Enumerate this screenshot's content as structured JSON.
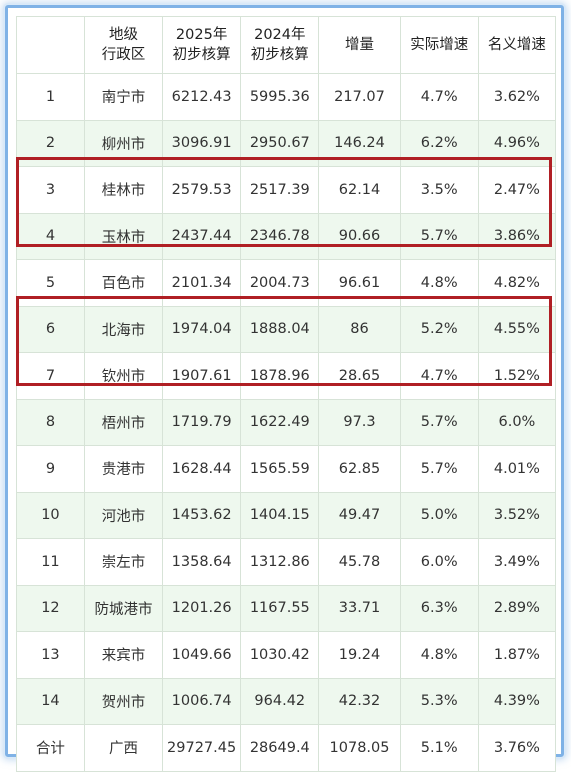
{
  "table": {
    "headers": [
      "",
      "地级\n行政区",
      "2025年\n初步核算",
      "2024年\n初步核算",
      "增量",
      "实际增速",
      "名义增速"
    ],
    "rows": [
      [
        "1",
        "南宁市",
        "6212.43",
        "5995.36",
        "217.07",
        "4.7%",
        "3.62%"
      ],
      [
        "2",
        "柳州市",
        "3096.91",
        "2950.67",
        "146.24",
        "6.2%",
        "4.96%"
      ],
      [
        "3",
        "桂林市",
        "2579.53",
        "2517.39",
        "62.14",
        "3.5%",
        "2.47%"
      ],
      [
        "4",
        "玉林市",
        "2437.44",
        "2346.78",
        "90.66",
        "5.7%",
        "3.86%"
      ],
      [
        "5",
        "百色市",
        "2101.34",
        "2004.73",
        "96.61",
        "4.8%",
        "4.82%"
      ],
      [
        "6",
        "北海市",
        "1974.04",
        "1888.04",
        "86",
        "5.2%",
        "4.55%"
      ],
      [
        "7",
        "钦州市",
        "1907.61",
        "1878.96",
        "28.65",
        "4.7%",
        "1.52%"
      ],
      [
        "8",
        "梧州市",
        "1719.79",
        "1622.49",
        "97.3",
        "5.7%",
        "6.0%"
      ],
      [
        "9",
        "贵港市",
        "1628.44",
        "1565.59",
        "62.85",
        "5.7%",
        "4.01%"
      ],
      [
        "10",
        "河池市",
        "1453.62",
        "1404.15",
        "49.47",
        "5.0%",
        "3.52%"
      ],
      [
        "11",
        "崇左市",
        "1358.64",
        "1312.86",
        "45.78",
        "6.0%",
        "3.49%"
      ],
      [
        "12",
        "防城港市",
        "1201.26",
        "1167.55",
        "33.71",
        "6.3%",
        "2.89%"
      ],
      [
        "13",
        "来宾市",
        "1049.66",
        "1030.42",
        "19.24",
        "4.8%",
        "1.87%"
      ],
      [
        "14",
        "贺州市",
        "1006.74",
        "964.42",
        "42.32",
        "5.3%",
        "4.39%"
      ],
      [
        "合计",
        "广西",
        "29727.45",
        "28649.4",
        "1078.05",
        "5.1%",
        "3.76%"
      ]
    ]
  },
  "colors": {
    "highlight_border": "#b01f24",
    "row_stripe": "#eef8ee",
    "frame_border": "#7fb2e6"
  }
}
